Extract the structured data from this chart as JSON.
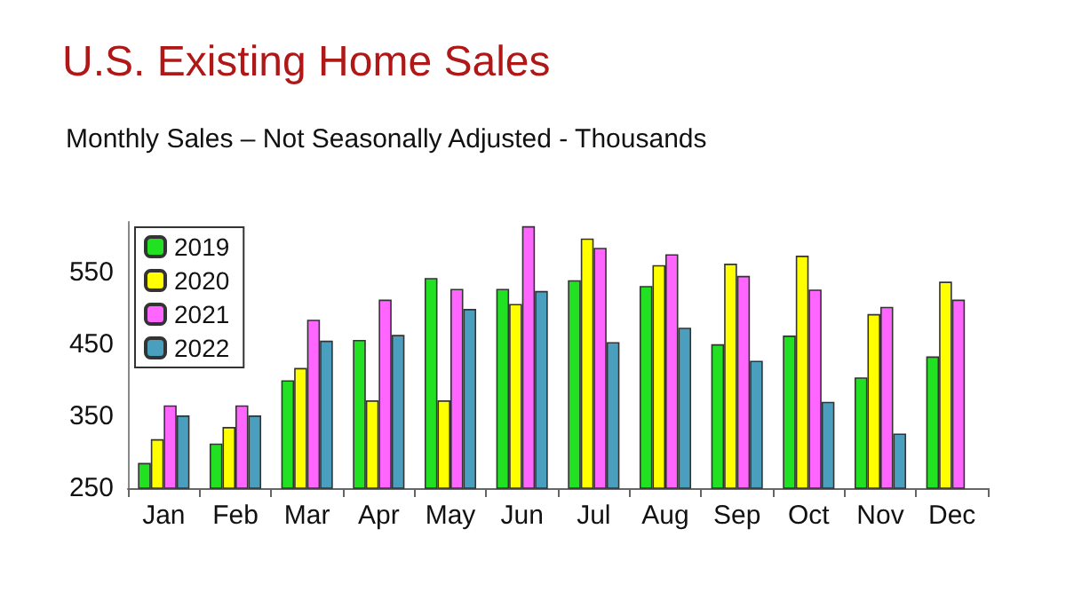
{
  "chart_data": {
    "type": "bar",
    "title": "U.S. Existing Home Sales",
    "subtitle": "Monthly Sales – Not Seasonally Adjusted - Thousands",
    "categories": [
      "Jan",
      "Feb",
      "Mar",
      "Apr",
      "May",
      "Jun",
      "Jul",
      "Aug",
      "Sep",
      "Oct",
      "Nov",
      "Dec"
    ],
    "series": [
      {
        "name": "2019",
        "color": "#22e022",
        "values": [
          285,
          312,
          400,
          456,
          542,
          527,
          539,
          531,
          450,
          462,
          404,
          433
        ]
      },
      {
        "name": "2020",
        "color": "#ffff00",
        "values": [
          318,
          335,
          417,
          372,
          372,
          506,
          597,
          560,
          562,
          573,
          492,
          537
        ]
      },
      {
        "name": "2021",
        "color": "#ff66ff",
        "values": [
          365,
          365,
          484,
          512,
          527,
          614,
          584,
          575,
          545,
          526,
          502,
          512
        ]
      },
      {
        "name": "2022",
        "color": "#4a9fbf",
        "values": [
          351,
          351,
          455,
          463,
          499,
          524,
          453,
          473,
          427,
          370,
          326,
          null
        ]
      }
    ],
    "ylim": [
      250,
      620
    ],
    "yticks": [
      250,
      350,
      450,
      550
    ],
    "grid": false,
    "legend": "top left"
  }
}
